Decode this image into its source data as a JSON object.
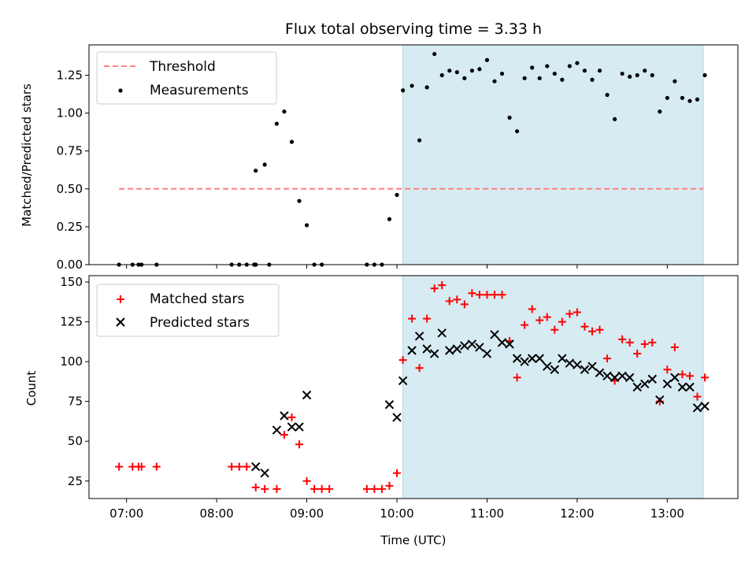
{
  "chart_data": [
    {
      "type": "scatter",
      "title": "Flux total observing time = 3.33 h",
      "xlabel": "",
      "ylabel": "Matched/Predicted stars",
      "xlim": [
        "06:35",
        "13:47"
      ],
      "ylim": [
        0,
        1.45
      ],
      "y_ticks": [
        0.0,
        0.25,
        0.5,
        0.75,
        1.0,
        1.25
      ],
      "y_tick_labels": [
        "0.00",
        "0.25",
        "0.50",
        "0.75",
        "1.00",
        "1.25"
      ],
      "x_ticks": [
        "07:00",
        "08:00",
        "09:00",
        "10:00",
        "11:00",
        "12:00",
        "13:00"
      ],
      "shaded_region": {
        "x_start": "10:04",
        "x_end": "13:24",
        "color": "#add8e6"
      },
      "threshold": {
        "name": "Threshold",
        "value": 0.5,
        "x_start": "06:55",
        "x_end": "13:24",
        "color": "#ff7f7f",
        "style": "dashed"
      },
      "legend_position": "upper-left",
      "series": [
        {
          "name": "Measurements",
          "color": "#000000",
          "marker": "dot",
          "points": [
            [
              "06:55",
              0
            ],
            [
              "07:04",
              0
            ],
            [
              "07:08",
              0
            ],
            [
              "07:10",
              0
            ],
            [
              "07:20",
              0
            ],
            [
              "08:10",
              0
            ],
            [
              "08:15",
              0
            ],
            [
              "08:20",
              0
            ],
            [
              "08:25",
              0
            ],
            [
              "08:26",
              0
            ],
            [
              "08:35",
              0
            ],
            [
              "08:26",
              0.62
            ],
            [
              "08:32",
              0.66
            ],
            [
              "08:40",
              0.93
            ],
            [
              "08:45",
              1.01
            ],
            [
              "08:50",
              0.81
            ],
            [
              "08:55",
              0.42
            ],
            [
              "09:00",
              0.26
            ],
            [
              "09:05",
              0
            ],
            [
              "09:10",
              0
            ],
            [
              "09:40",
              0
            ],
            [
              "09:45",
              0
            ],
            [
              "09:50",
              0
            ],
            [
              "09:55",
              0.3
            ],
            [
              "10:00",
              0.46
            ],
            [
              "10:04",
              1.15
            ],
            [
              "10:10",
              1.18
            ],
            [
              "10:15",
              0.82
            ],
            [
              "10:20",
              1.17
            ],
            [
              "10:25",
              1.39
            ],
            [
              "10:30",
              1.25
            ],
            [
              "10:35",
              1.28
            ],
            [
              "10:40",
              1.27
            ],
            [
              "10:45",
              1.23
            ],
            [
              "10:50",
              1.28
            ],
            [
              "10:55",
              1.29
            ],
            [
              "11:00",
              1.35
            ],
            [
              "11:05",
              1.21
            ],
            [
              "11:10",
              1.26
            ],
            [
              "11:15",
              0.97
            ],
            [
              "11:20",
              0.88
            ],
            [
              "11:25",
              1.23
            ],
            [
              "11:30",
              1.3
            ],
            [
              "11:35",
              1.23
            ],
            [
              "11:40",
              1.31
            ],
            [
              "11:45",
              1.26
            ],
            [
              "11:50",
              1.22
            ],
            [
              "11:55",
              1.31
            ],
            [
              "12:00",
              1.33
            ],
            [
              "12:05",
              1.28
            ],
            [
              "12:10",
              1.22
            ],
            [
              "12:15",
              1.28
            ],
            [
              "12:20",
              1.12
            ],
            [
              "12:25",
              0.96
            ],
            [
              "12:30",
              1.26
            ],
            [
              "12:35",
              1.24
            ],
            [
              "12:40",
              1.25
            ],
            [
              "12:45",
              1.28
            ],
            [
              "12:50",
              1.25
            ],
            [
              "12:55",
              1.01
            ],
            [
              "13:00",
              1.1
            ],
            [
              "13:05",
              1.21
            ],
            [
              "13:10",
              1.1
            ],
            [
              "13:15",
              1.08
            ],
            [
              "13:20",
              1.09
            ],
            [
              "13:25",
              1.25
            ]
          ]
        }
      ]
    },
    {
      "type": "scatter",
      "title": "",
      "xlabel": "Time (UTC)",
      "ylabel": "Count",
      "xlim": [
        "06:35",
        "13:47"
      ],
      "ylim": [
        14,
        154
      ],
      "y_ticks": [
        25,
        50,
        75,
        100,
        125,
        150
      ],
      "y_tick_labels": [
        "25",
        "50",
        "75",
        "100",
        "125",
        "150"
      ],
      "x_ticks": [
        "07:00",
        "08:00",
        "09:00",
        "10:00",
        "11:00",
        "12:00",
        "13:00"
      ],
      "x_tick_labels": [
        "07:00",
        "08:00",
        "09:00",
        "10:00",
        "11:00",
        "12:00",
        "13:00"
      ],
      "shaded_region": {
        "x_start": "10:04",
        "x_end": "13:24",
        "color": "#add8e6"
      },
      "legend_position": "upper-left",
      "series": [
        {
          "name": "Matched stars",
          "color": "#ff0000",
          "marker": "plus",
          "points": [
            [
              "06:55",
              34
            ],
            [
              "07:04",
              34
            ],
            [
              "07:08",
              34
            ],
            [
              "07:10",
              34
            ],
            [
              "07:20",
              34
            ],
            [
              "08:10",
              34
            ],
            [
              "08:15",
              34
            ],
            [
              "08:20",
              34
            ],
            [
              "08:26",
              21
            ],
            [
              "08:32",
              20
            ],
            [
              "08:40",
              20
            ],
            [
              "08:45",
              54
            ],
            [
              "08:50",
              65
            ],
            [
              "08:55",
              48
            ],
            [
              "09:00",
              25
            ],
            [
              "09:05",
              20
            ],
            [
              "09:10",
              20
            ],
            [
              "09:15",
              20
            ],
            [
              "09:40",
              20
            ],
            [
              "09:45",
              20
            ],
            [
              "09:50",
              20
            ],
            [
              "09:55",
              22
            ],
            [
              "10:00",
              30
            ],
            [
              "10:04",
              101
            ],
            [
              "10:10",
              127
            ],
            [
              "10:15",
              96
            ],
            [
              "10:20",
              127
            ],
            [
              "10:25",
              146
            ],
            [
              "10:30",
              148
            ],
            [
              "10:35",
              138
            ],
            [
              "10:40",
              139
            ],
            [
              "10:45",
              136
            ],
            [
              "10:50",
              143
            ],
            [
              "10:55",
              142
            ],
            [
              "11:00",
              142
            ],
            [
              "11:05",
              142
            ],
            [
              "11:10",
              142
            ],
            [
              "11:15",
              113
            ],
            [
              "11:20",
              90
            ],
            [
              "11:25",
              123
            ],
            [
              "11:30",
              133
            ],
            [
              "11:35",
              126
            ],
            [
              "11:40",
              128
            ],
            [
              "11:45",
              120
            ],
            [
              "11:50",
              125
            ],
            [
              "11:55",
              130
            ],
            [
              "12:00",
              131
            ],
            [
              "12:05",
              122
            ],
            [
              "12:10",
              119
            ],
            [
              "12:15",
              120
            ],
            [
              "12:20",
              102
            ],
            [
              "12:25",
              88
            ],
            [
              "12:30",
              114
            ],
            [
              "12:35",
              112
            ],
            [
              "12:40",
              105
            ],
            [
              "12:45",
              111
            ],
            [
              "12:50",
              112
            ],
            [
              "12:55",
              75
            ],
            [
              "13:00",
              95
            ],
            [
              "13:05",
              109
            ],
            [
              "13:10",
              92
            ],
            [
              "13:15",
              91
            ],
            [
              "13:20",
              78
            ],
            [
              "13:25",
              90
            ]
          ]
        },
        {
          "name": "Predicted stars",
          "color": "#000000",
          "marker": "x",
          "points": [
            [
              "08:26",
              34
            ],
            [
              "08:32",
              30
            ],
            [
              "08:40",
              57
            ],
            [
              "08:45",
              66
            ],
            [
              "08:50",
              59
            ],
            [
              "08:55",
              59
            ],
            [
              "09:00",
              79
            ],
            [
              "09:55",
              73
            ],
            [
              "10:00",
              65
            ],
            [
              "10:04",
              88
            ],
            [
              "10:10",
              107
            ],
            [
              "10:15",
              116
            ],
            [
              "10:20",
              108
            ],
            [
              "10:25",
              105
            ],
            [
              "10:30",
              118
            ],
            [
              "10:35",
              107
            ],
            [
              "10:40",
              108
            ],
            [
              "10:45",
              110
            ],
            [
              "10:50",
              111
            ],
            [
              "10:55",
              109
            ],
            [
              "11:00",
              105
            ],
            [
              "11:05",
              117
            ],
            [
              "11:10",
              112
            ],
            [
              "11:15",
              111
            ],
            [
              "11:20",
              102
            ],
            [
              "11:25",
              100
            ],
            [
              "11:30",
              102
            ],
            [
              "11:35",
              102
            ],
            [
              "11:40",
              97
            ],
            [
              "11:45",
              95
            ],
            [
              "11:50",
              102
            ],
            [
              "11:55",
              99
            ],
            [
              "12:00",
              98
            ],
            [
              "12:05",
              95
            ],
            [
              "12:10",
              97
            ],
            [
              "12:15",
              93
            ],
            [
              "12:20",
              91
            ],
            [
              "12:25",
              90
            ],
            [
              "12:30",
              91
            ],
            [
              "12:35",
              90
            ],
            [
              "12:40",
              84
            ],
            [
              "12:45",
              86
            ],
            [
              "12:50",
              89
            ],
            [
              "12:55",
              76
            ],
            [
              "13:00",
              86
            ],
            [
              "13:05",
              90
            ],
            [
              "13:10",
              84
            ],
            [
              "13:15",
              84
            ],
            [
              "13:20",
              71
            ],
            [
              "13:25",
              72
            ]
          ]
        }
      ]
    }
  ]
}
